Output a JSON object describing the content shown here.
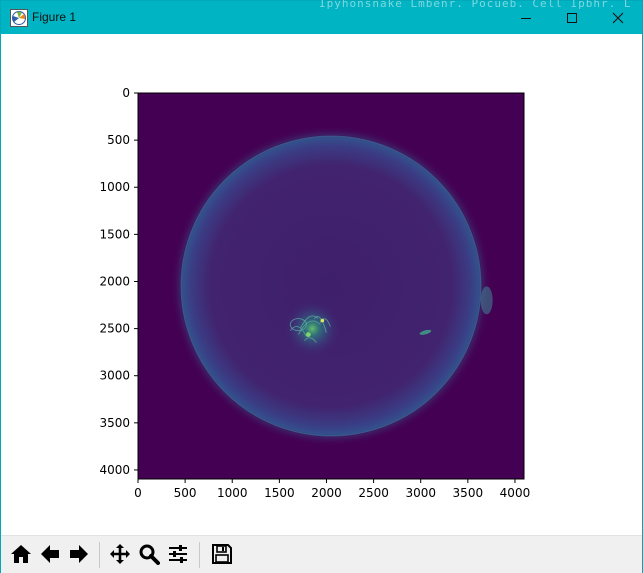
{
  "window": {
    "title": "Figure 1",
    "background_text": "Ipyhonsnake Lmbenr. Pocueb. Cell Ipbhr. L",
    "controls": {
      "minimize": "minimize-icon",
      "maximize": "maximize-icon",
      "close": "close-icon"
    },
    "titlebar_color": "#00b4c3"
  },
  "chart_data": {
    "type": "heatmap",
    "title": "",
    "xlabel": "",
    "ylabel": "",
    "xlim": [
      0,
      4096
    ],
    "ylim": [
      4096,
      0
    ],
    "x_ticks": [
      0,
      500,
      1000,
      1500,
      2000,
      2500,
      3000,
      3500,
      4000
    ],
    "y_ticks": [
      0,
      500,
      1000,
      1500,
      2000,
      2500,
      3000,
      3500,
      4000
    ],
    "colormap": "viridis",
    "background_color": "#440154",
    "features": {
      "disk": {
        "center": [
          2048,
          2048
        ],
        "radius": 1600
      },
      "bright_regions": [
        {
          "name": "active-region",
          "x": 1850,
          "y": 2500
        },
        {
          "name": "bright-point",
          "x": 3050,
          "y": 2540
        },
        {
          "name": "limb-feature",
          "x": 3700,
          "y": 2200
        }
      ]
    }
  },
  "toolbar": {
    "buttons": [
      {
        "name": "home-button",
        "icon": "home-icon"
      },
      {
        "name": "back-button",
        "icon": "arrow-left-icon"
      },
      {
        "name": "forward-button",
        "icon": "arrow-right-icon"
      },
      {
        "name": "pan-button",
        "icon": "move-icon"
      },
      {
        "name": "zoom-button",
        "icon": "magnifier-icon"
      },
      {
        "name": "configure-subplots-button",
        "icon": "sliders-icon"
      },
      {
        "name": "save-button",
        "icon": "floppy-disk-icon"
      }
    ]
  }
}
